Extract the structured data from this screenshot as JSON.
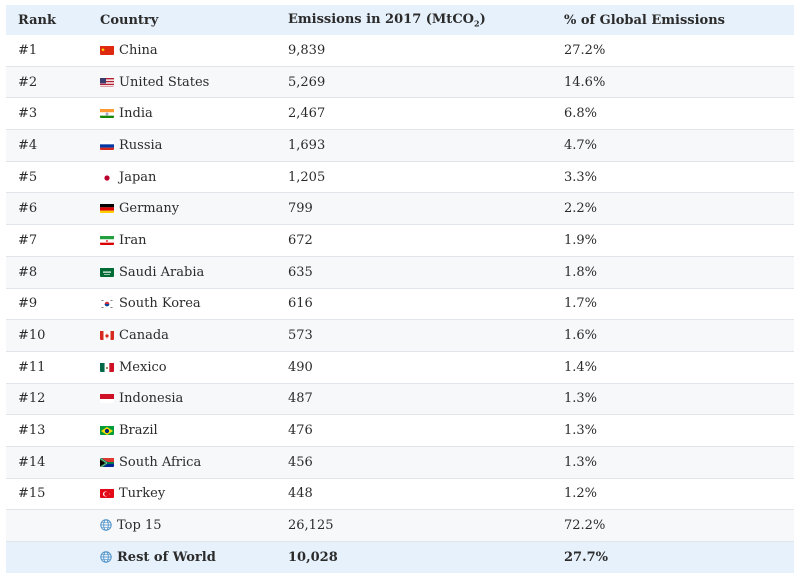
{
  "chart_data": {
    "type": "table",
    "columns": [
      "Rank",
      "Country",
      "Emissions in 2017 (MtCO",
      "% of Global Emissions"
    ],
    "emissions_subscript": "2",
    "emissions_suffix": ")",
    "rows": [
      {
        "rank": "#1",
        "country": "China",
        "flag": "flag-china",
        "emissions": "9,839",
        "share": "27.2%"
      },
      {
        "rank": "#2",
        "country": "United States",
        "flag": "flag-united-states",
        "emissions": "5,269",
        "share": "14.6%"
      },
      {
        "rank": "#3",
        "country": "India",
        "flag": "flag-india",
        "emissions": "2,467",
        "share": "6.8%"
      },
      {
        "rank": "#4",
        "country": "Russia",
        "flag": "flag-russia",
        "emissions": "1,693",
        "share": "4.7%"
      },
      {
        "rank": "#5",
        "country": "Japan",
        "flag": "flag-japan",
        "emissions": "1,205",
        "share": "3.3%"
      },
      {
        "rank": "#6",
        "country": "Germany",
        "flag": "flag-germany",
        "emissions": "799",
        "share": "2.2%"
      },
      {
        "rank": "#7",
        "country": "Iran",
        "flag": "flag-iran",
        "emissions": "672",
        "share": "1.9%"
      },
      {
        "rank": "#8",
        "country": "Saudi Arabia",
        "flag": "flag-saudi-arabia",
        "emissions": "635",
        "share": "1.8%"
      },
      {
        "rank": "#9",
        "country": "South Korea",
        "flag": "flag-south-korea",
        "emissions": "616",
        "share": "1.7%"
      },
      {
        "rank": "#10",
        "country": "Canada",
        "flag": "flag-canada",
        "emissions": "573",
        "share": "1.6%"
      },
      {
        "rank": "#11",
        "country": "Mexico",
        "flag": "flag-mexico",
        "emissions": "490",
        "share": "1.4%"
      },
      {
        "rank": "#12",
        "country": "Indonesia",
        "flag": "flag-indonesia",
        "emissions": "487",
        "share": "1.3%"
      },
      {
        "rank": "#13",
        "country": "Brazil",
        "flag": "flag-brazil",
        "emissions": "476",
        "share": "1.3%"
      },
      {
        "rank": "#14",
        "country": "South Africa",
        "flag": "flag-south-africa",
        "emissions": "456",
        "share": "1.3%"
      },
      {
        "rank": "#15",
        "country": "Turkey",
        "flag": "flag-turkey",
        "emissions": "448",
        "share": "1.2%"
      }
    ],
    "summary_rows": [
      {
        "rank": "",
        "country": "Top 15",
        "icon": "globe-icon",
        "emissions": "26,125",
        "share": "72.2%"
      },
      {
        "rank": "",
        "country": "Rest of World",
        "icon": "globe-icon",
        "emissions": "10,028",
        "share": "27.7%"
      }
    ]
  },
  "colors": {
    "header_bg": "#e7f1fb",
    "alt_row_bg": "#f6f8fa",
    "row_border": "#e1e5ea",
    "globe": "#4a90c8"
  }
}
